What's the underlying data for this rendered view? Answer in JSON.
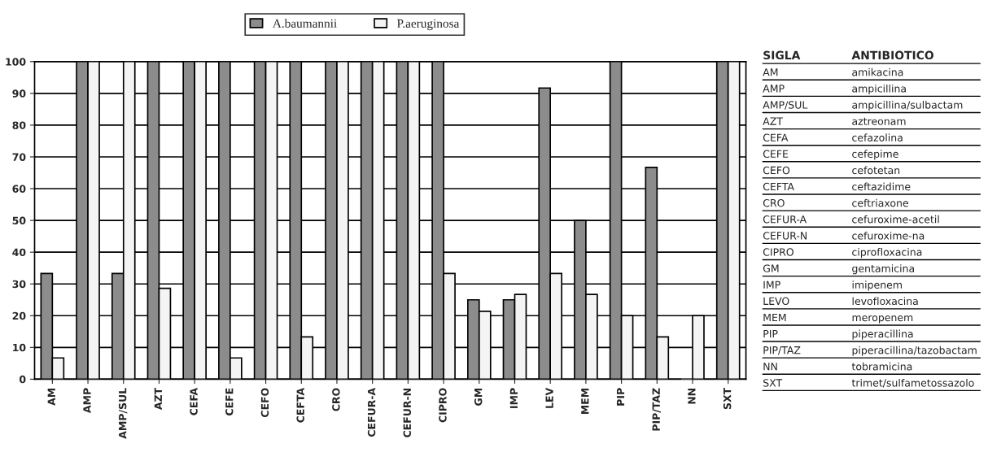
{
  "chart_data": {
    "type": "bar",
    "categories": [
      "AM",
      "AMP",
      "AMP/SUL",
      "AZT",
      "CEFA",
      "CEFE",
      "CEFO",
      "CEFTA",
      "CRO",
      "CEFUR-A",
      "CEFUR-N",
      "CIPRO",
      "GM",
      "IMP",
      "LEV",
      "MEM",
      "PIP",
      "PIP/TAZ",
      "NN",
      "SXT"
    ],
    "series": [
      {
        "name": "A.baumannii",
        "color": "#8c8c8c",
        "values": [
          33.3,
          100,
          33.3,
          100,
          100,
          100,
          100,
          100,
          100,
          100,
          100,
          100,
          25,
          25,
          91.7,
          50,
          100,
          66.7,
          0,
          100
        ]
      },
      {
        "name": "P.aeruginosa",
        "color": "#f4f4f4",
        "values": [
          6.7,
          100,
          100,
          28.6,
          100,
          6.7,
          100,
          13.3,
          100,
          100,
          100,
          33.3,
          21.4,
          26.7,
          33.3,
          26.7,
          20,
          13.3,
          20,
          100
        ]
      }
    ],
    "ylim": [
      0,
      100
    ],
    "yticks": [
      0,
      10,
      20,
      30,
      40,
      50,
      60,
      70,
      80,
      90,
      100
    ],
    "grid": "y",
    "legend": "top",
    "annotations": [
      "SIGLA",
      "ANTIBIOTICO",
      "AM",
      "amikacina",
      "AMP",
      "ampicillina",
      "AMP/SUL",
      "ampicillina/sulbactam",
      "AZT",
      "aztreonam",
      "CEFA",
      "cefazolina",
      "CEFE",
      "cefepime",
      "CEFO",
      "cefotetan",
      "CEFTA",
      "ceftazidime",
      "CRO",
      "ceftriaxone",
      "CEFUR-A",
      "cefuroxime-acetil",
      "CEFUR-N",
      "cefuroxime-na",
      "CIPRO",
      "ciprofloxacina",
      "GM",
      "gentamicina",
      "IMP",
      "imipenem",
      "LEVO",
      "levofloxacina",
      "MEM",
      "meropenem",
      "PIP",
      "piperacillina",
      "PIP/TAZ",
      "piperacillina/tazobactam",
      "NN",
      "tobramicina",
      "SXT",
      "trimet/sulfametossazolo"
    ]
  }
}
